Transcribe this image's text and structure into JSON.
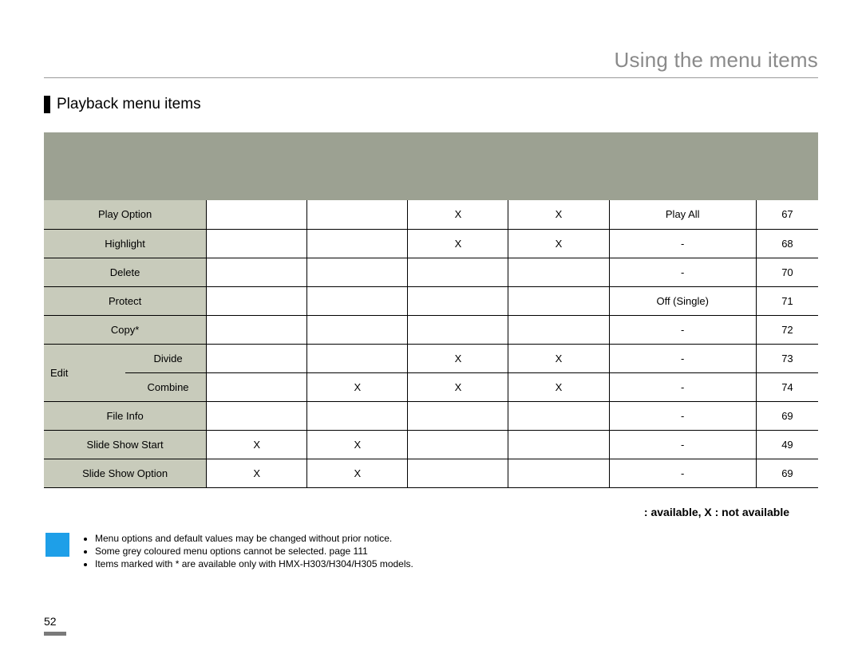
{
  "header_title": "Using the menu items",
  "section_title": "Playback menu items",
  "table": {
    "rows": [
      {
        "item": "Play Option",
        "sub": null,
        "a": "",
        "b": "",
        "c": "X",
        "d": "X",
        "def": "Play All",
        "pg": "67"
      },
      {
        "item": "Highlight",
        "sub": null,
        "a": "",
        "b": "",
        "c": "X",
        "d": "X",
        "def": "-",
        "pg": "68"
      },
      {
        "item": "Delete",
        "sub": null,
        "a": "",
        "b": "",
        "c": "",
        "d": "",
        "def": "-",
        "pg": "70"
      },
      {
        "item": "Protect",
        "sub": null,
        "a": "",
        "b": "",
        "c": "",
        "d": "",
        "def": "Off (Single)",
        "pg": "71"
      },
      {
        "item": "Copy*",
        "sub": null,
        "a": "",
        "b": "",
        "c": "",
        "d": "",
        "def": "-",
        "pg": "72"
      },
      {
        "item": "Edit",
        "sub": "Divide",
        "a": "",
        "b": "",
        "c": "X",
        "d": "X",
        "def": "-",
        "pg": "73"
      },
      {
        "item": null,
        "sub": "Combine",
        "a": "",
        "b": "X",
        "c": "X",
        "d": "X",
        "def": "-",
        "pg": "74"
      },
      {
        "item": "File Info",
        "sub": null,
        "a": "",
        "b": "",
        "c": "",
        "d": "",
        "def": "-",
        "pg": "69"
      },
      {
        "item": "Slide Show Start",
        "sub": null,
        "a": "X",
        "b": "X",
        "c": "",
        "d": "",
        "def": "-",
        "pg": "49"
      },
      {
        "item": "Slide Show Option",
        "sub": null,
        "a": "X",
        "b": "X",
        "c": "",
        "d": "",
        "def": "-",
        "pg": "69"
      }
    ]
  },
  "legend_text": ": available, X : not available",
  "notes": [
    "Menu options and default values may be changed without prior notice.",
    "Some grey coloured menu options cannot be selected. page 111",
    "Items marked with * are available only with HMX-H303/H304/H305 models."
  ],
  "page_number": "52",
  "colors": {
    "header_band": "#9ca192",
    "item_bg": "#c8cbbb",
    "note_icon": "#1e9fe8",
    "header_text": "#8a8a8a"
  }
}
